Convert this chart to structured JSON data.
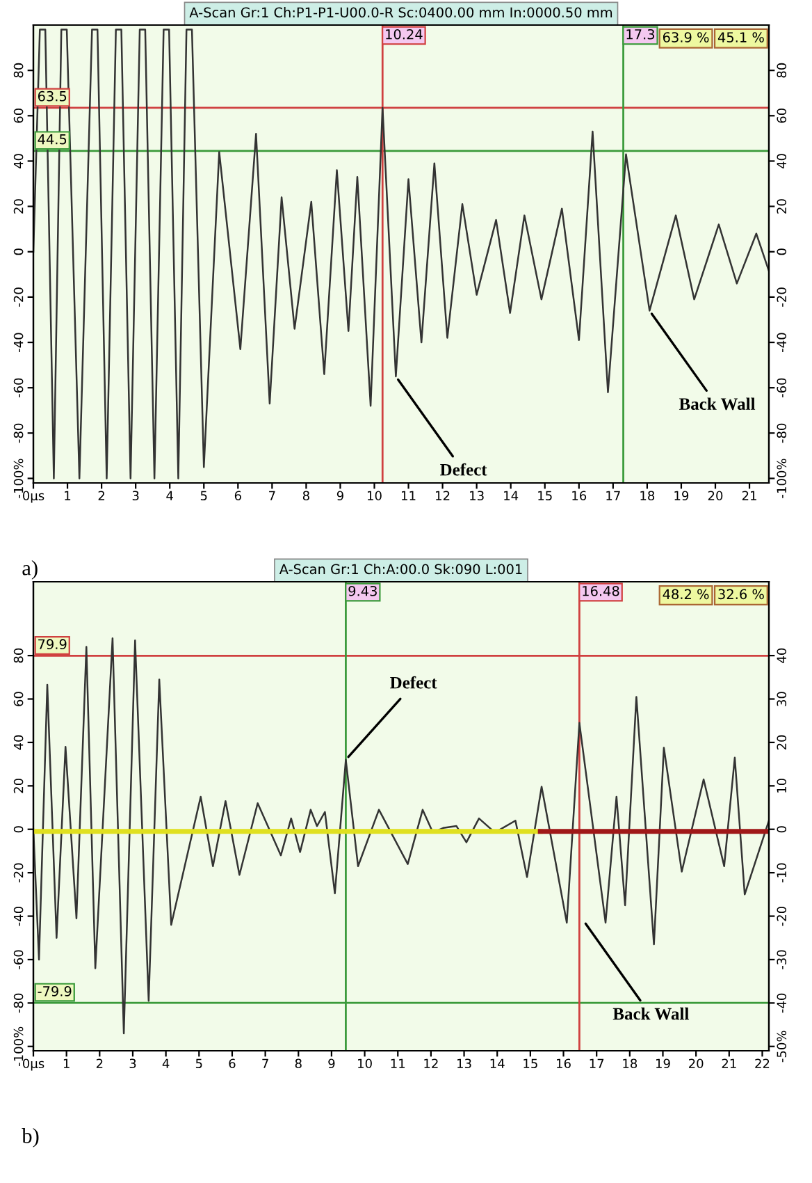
{
  "chart_data": [
    {
      "type": "line",
      "title": "A-Scan Gr:1 Ch:P1-P1-U00.0-R Sc:0400.00 mm In:0000.50 mm",
      "subtitle": "a)",
      "xlim": [
        0,
        21.57
      ],
      "xticks": [
        {
          "value": 0,
          "label": "0µs"
        },
        1,
        2,
        3,
        4,
        5,
        6,
        7,
        8,
        9,
        10,
        11,
        12,
        13,
        14,
        15,
        16,
        17,
        18,
        19,
        20,
        21
      ],
      "ylim": [
        -102,
        100
      ],
      "yticks": [
        {
          "value": -100,
          "label": "-100%"
        },
        -80,
        -60,
        -40,
        -20,
        0,
        20,
        40,
        60,
        80
      ],
      "y2lim": [
        -102,
        100
      ],
      "y2ticks": [
        {
          "value": -100,
          "label": "-100%"
        },
        -80,
        -60,
        -40,
        -20,
        0,
        20,
        40,
        60,
        80
      ],
      "series": [
        {
          "color": "#333333",
          "x": [
            0,
            0.19,
            0.35,
            0.6,
            0.82,
            0.98,
            1.35,
            1.72,
            1.88,
            2.15,
            2.42,
            2.58,
            2.85,
            3.12,
            3.28,
            3.55,
            3.82,
            3.98,
            4.25,
            4.49,
            4.65,
            5.0,
            5.45,
            6.07,
            6.53,
            6.93,
            7.28,
            7.66,
            8.15,
            8.53,
            8.9,
            9.24,
            9.5,
            9.89,
            10.24,
            10.63,
            11.0,
            11.38,
            11.76,
            12.14,
            12.58,
            13.0,
            13.57,
            13.98,
            14.4,
            14.9,
            15.5,
            16.0,
            16.4,
            16.85,
            17.38,
            18.07,
            18.84,
            19.38,
            20.1,
            20.63,
            21.2,
            21.57
          ],
          "values": [
            0,
            98,
            98,
            -100,
            98,
            98,
            -100,
            98,
            98,
            -100,
            98,
            98,
            -100,
            98,
            98,
            -100,
            98,
            98,
            -100,
            98,
            98,
            -95,
            44,
            -43,
            52,
            -67,
            24,
            -34,
            22,
            -54,
            36,
            -35,
            33,
            -68,
            63.5,
            -55,
            32,
            -40,
            39,
            -38,
            21,
            -19,
            14,
            -27,
            16,
            -21,
            19,
            -39,
            53,
            -62,
            43,
            -26,
            16,
            -21,
            12,
            -14,
            8,
            -8.5
          ]
        }
      ],
      "ref_lines": [
        {
          "axis": "y",
          "value": 63.5,
          "label": "63.5",
          "color": "#d04040"
        },
        {
          "axis": "y",
          "value": 44.5,
          "label": "44.5",
          "color": "#3a9a3a"
        },
        {
          "axis": "x",
          "value": 10.24,
          "label": "10.24",
          "color": "#d04040"
        },
        {
          "axis": "x",
          "value": 17.3,
          "label": "17.3",
          "color": "#3a9a3a"
        }
      ],
      "annotations": [
        "63.9 %",
        "45.1 %",
        {
          "text": "Defect",
          "x": 10.63,
          "y": -55
        },
        {
          "text": "Back Wall",
          "x": 18.07,
          "y": -26
        }
      ]
    },
    {
      "type": "line",
      "title": "A-Scan Gr:1 Ch:A:00.0 Sk:090 L:001",
      "subtitle": "b)",
      "xlim": [
        0,
        22.2
      ],
      "xticks": [
        {
          "value": 0,
          "label": "0µs"
        },
        1,
        2,
        3,
        4,
        5,
        6,
        7,
        8,
        9,
        10,
        11,
        12,
        13,
        14,
        15,
        16,
        17,
        18,
        19,
        20,
        21,
        22
      ],
      "ylim": [
        -102,
        114
      ],
      "yticks": [
        {
          "value": -100,
          "label": "-100%"
        },
        -80,
        -60,
        -40,
        -20,
        0,
        20,
        40,
        60,
        80
      ],
      "y2lim": [
        -51,
        57
      ],
      "y2ticks": [
        {
          "value": -50,
          "label": "-50%"
        },
        -40,
        -30,
        -20,
        -10,
        0,
        10,
        20,
        30,
        40
      ],
      "series": [
        {
          "color": "#333333",
          "x": [
            0,
            0.17,
            0.42,
            0.7,
            0.97,
            1.3,
            1.6,
            1.87,
            2.39,
            2.73,
            3.07,
            3.48,
            3.8,
            4.16,
            5.05,
            5.42,
            5.8,
            6.22,
            6.77,
            7.47,
            7.78,
            8.05,
            8.37,
            8.56,
            8.8,
            9.1,
            9.43,
            9.8,
            10.43,
            11.3,
            11.75,
            12.06,
            12.37,
            12.77,
            13.07,
            13.45,
            13.93,
            14.55,
            14.9,
            15.34,
            16.1,
            16.48,
            17.27,
            17.6,
            17.86,
            18.2,
            18.73,
            19.03,
            19.57,
            20.23,
            20.85,
            21.17,
            21.47,
            22.2
          ],
          "values": [
            0,
            -60,
            66.6,
            -50,
            38,
            -41,
            84,
            -64,
            88,
            -94,
            87,
            -79,
            69,
            -44,
            15,
            -17,
            13,
            -21,
            12,
            -12,
            5,
            -10.5,
            9,
            1.5,
            8,
            -29.5,
            32,
            -17,
            9,
            -16,
            9,
            -1.5,
            0.6,
            1.5,
            -6,
            5,
            -1.5,
            4,
            -22,
            19.6,
            -43,
            49,
            -43,
            15,
            -35,
            61,
            -53,
            37.6,
            -19.5,
            23,
            -17,
            33,
            -30,
            4
          ]
        },
        {
          "color": "#e0e020",
          "x": [
            0,
            15.3
          ],
          "values": [
            -1,
            -1
          ]
        },
        {
          "color": "#a01818",
          "x": [
            15.3,
            22.2
          ],
          "values": [
            -1,
            -1
          ]
        }
      ],
      "ref_lines": [
        {
          "axis": "y",
          "value": 79.9,
          "label": "79.9",
          "color": "#d04040"
        },
        {
          "axis": "y",
          "value": -79.9,
          "label": "-79.9",
          "color": "#3a9a3a"
        },
        {
          "axis": "x",
          "value": 9.43,
          "label": "9.43",
          "color": "#3a9a3a"
        },
        {
          "axis": "x",
          "value": 16.48,
          "label": "16.48",
          "color": "#d04040"
        }
      ],
      "annotations": [
        "48.2 %",
        "32.6 %",
        {
          "text": "Defect",
          "x": 9.43,
          "y": 32
        },
        {
          "text": "Back Wall",
          "x": 16.6,
          "y": -42
        }
      ]
    }
  ]
}
